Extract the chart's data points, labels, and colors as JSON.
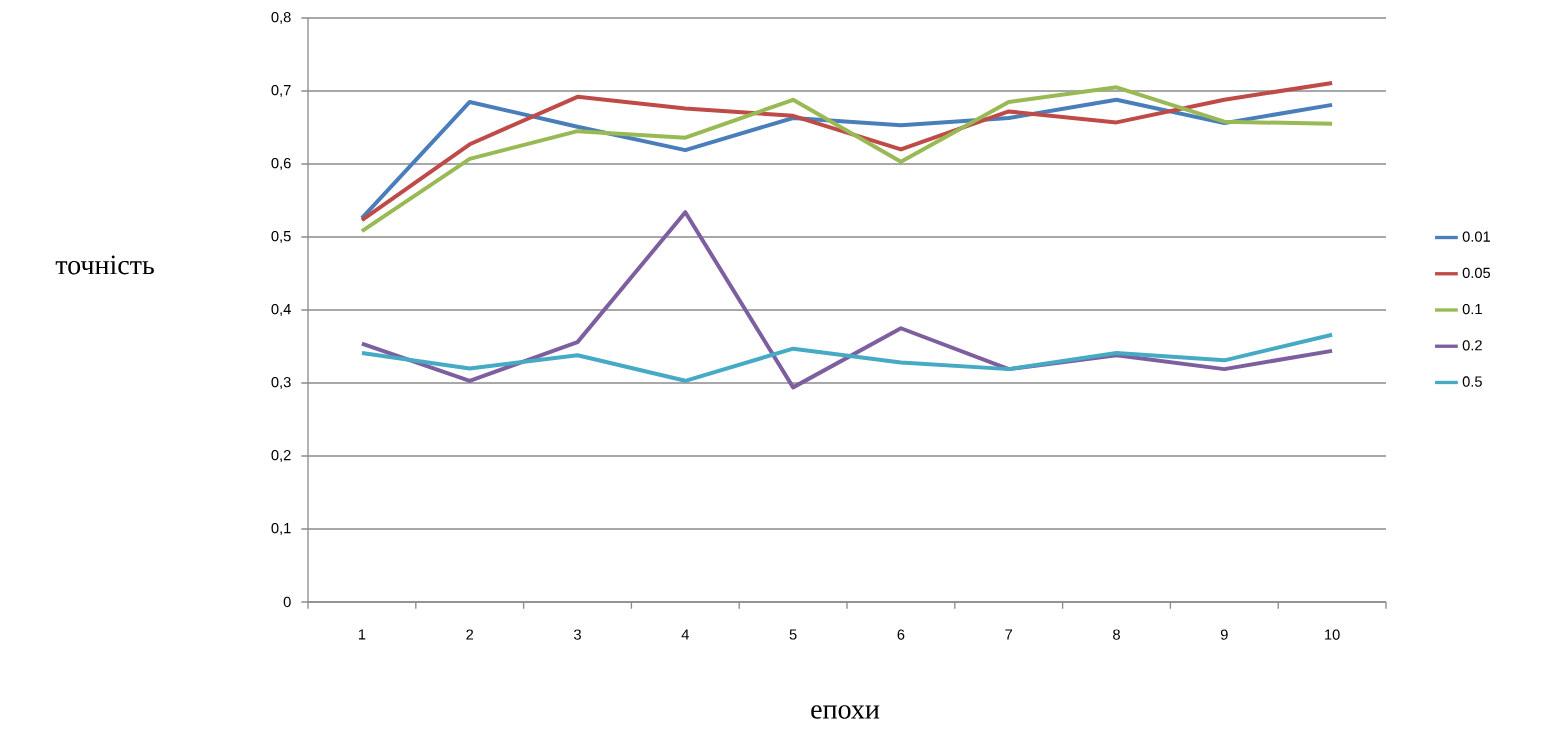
{
  "chart_data": {
    "type": "line",
    "xlabel": "епохи",
    "ylabel": "точність",
    "categories": [
      "1",
      "2",
      "3",
      "4",
      "5",
      "6",
      "7",
      "8",
      "9",
      "10"
    ],
    "series": [
      {
        "name": "0.01",
        "color": "#4a7ebb",
        "values": [
          0.526,
          0.685,
          0.651,
          0.619,
          0.663,
          0.653,
          0.663,
          0.688,
          0.656,
          0.681
        ]
      },
      {
        "name": "0.05",
        "color": "#be4b48",
        "values": [
          0.523,
          0.627,
          0.692,
          0.676,
          0.666,
          0.62,
          0.672,
          0.657,
          0.688,
          0.711
        ]
      },
      {
        "name": "0.1",
        "color": "#98b954",
        "values": [
          0.508,
          0.607,
          0.645,
          0.636,
          0.688,
          0.603,
          0.685,
          0.705,
          0.658,
          0.655
        ]
      },
      {
        "name": "0.2",
        "color": "#7d5fa0",
        "values": [
          0.354,
          0.303,
          0.356,
          0.534,
          0.294,
          0.375,
          0.319,
          0.338,
          0.319,
          0.344
        ]
      },
      {
        "name": "0.5",
        "color": "#46aac5",
        "values": [
          0.341,
          0.32,
          0.338,
          0.303,
          0.347,
          0.328,
          0.319,
          0.341,
          0.331,
          0.366
        ]
      }
    ],
    "ylim": [
      0,
      0.8
    ],
    "yticks": [
      0,
      {
        "value": 0.1,
        "label": "0,1"
      },
      {
        "value": 0.2,
        "label": "0,2"
      },
      {
        "value": 0.3,
        "label": "0,3"
      },
      {
        "value": 0.4,
        "label": "0,4"
      },
      {
        "value": 0.5,
        "label": "0,5"
      },
      {
        "value": 0.6,
        "label": "0,6"
      },
      {
        "value": 0.7,
        "label": "0,7"
      },
      {
        "value": 0.8,
        "label": "0,8"
      }
    ],
    "grid": "y",
    "legend": "right",
    "marker": "none",
    "line_style": "solid"
  }
}
